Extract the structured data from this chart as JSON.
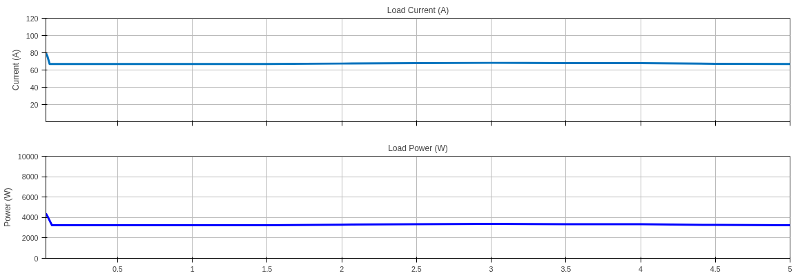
{
  "chart_data": [
    {
      "type": "line",
      "title": "Load Current (A)",
      "ylabel": "Current (A)",
      "x": [
        0.02,
        0.03,
        0.045,
        0.5,
        1,
        1.5,
        2,
        2.5,
        3,
        3.5,
        4,
        4.5,
        5
      ],
      "series": [
        {
          "color": "#0072bd",
          "values": [
            80,
            76,
            67,
            67,
            67,
            67,
            67.5,
            68,
            68.3,
            68,
            68,
            67.2,
            67
          ]
        }
      ],
      "xlim": [
        0.02,
        5
      ],
      "xticks": [
        0.5,
        1,
        1.5,
        2,
        2.5,
        3,
        3.5,
        4,
        4.5,
        5
      ],
      "ylim": [
        0,
        120
      ],
      "yticks": [
        20,
        40,
        60,
        80,
        100,
        120
      ],
      "grid": true,
      "tick_labels": "y"
    },
    {
      "type": "line",
      "title": "Load Power (W)",
      "ylabel": "Power (W)",
      "x": [
        0.02,
        0.035,
        0.06,
        0.5,
        1,
        1.5,
        2,
        2.5,
        3,
        3.5,
        4,
        4.5,
        5
      ],
      "series": [
        {
          "color": "#0000ff",
          "values": [
            4400,
            4000,
            3250,
            3250,
            3250,
            3250,
            3300,
            3350,
            3380,
            3350,
            3350,
            3270,
            3250
          ]
        }
      ],
      "xlim": [
        0.02,
        5
      ],
      "xticks": [
        0.5,
        1,
        1.5,
        2,
        2.5,
        3,
        3.5,
        4,
        4.5,
        5
      ],
      "ylim": [
        0,
        10000
      ],
      "yticks": [
        0,
        2000,
        4000,
        6000,
        8000,
        10000
      ],
      "grid": true
    }
  ]
}
